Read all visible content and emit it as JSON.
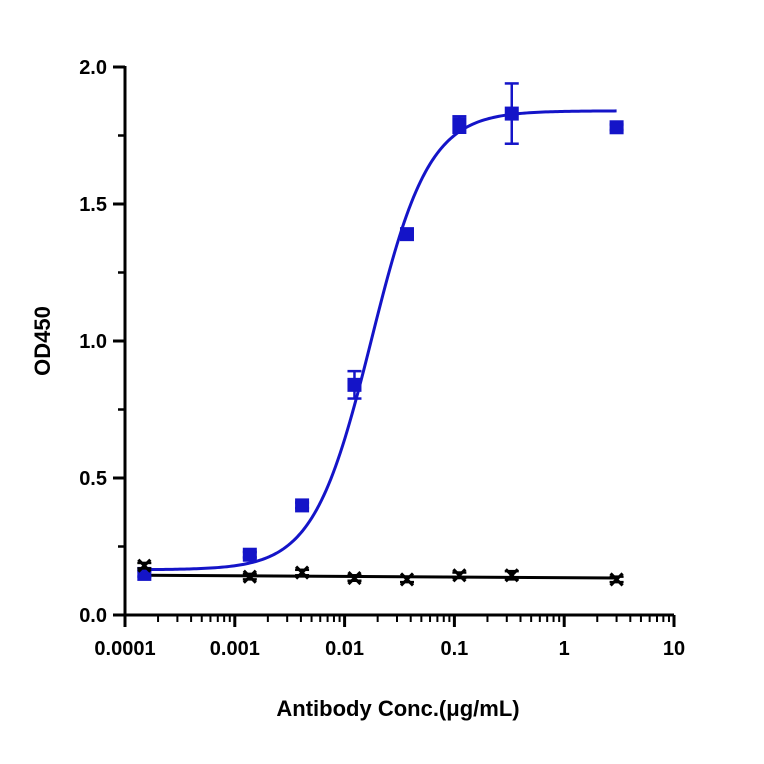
{
  "chart_data": {
    "type": "scatter",
    "title": "",
    "xlabel": "Antibody Conc.(μg/mL)",
    "ylabel": "OD450",
    "xscale": "log",
    "xlim": [
      0.0001,
      10
    ],
    "ylim": [
      0.0,
      2.0
    ],
    "x_ticks": [
      {
        "value": 0.0001,
        "label": "0.0001"
      },
      {
        "value": 0.001,
        "label": "0.001"
      },
      {
        "value": 0.01,
        "label": "0.01"
      },
      {
        "value": 0.1,
        "label": "0.1"
      },
      {
        "value": 1,
        "label": "1"
      },
      {
        "value": 10,
        "label": "10"
      }
    ],
    "y_ticks": [
      {
        "value": 0.0,
        "label": "0.0"
      },
      {
        "value": 0.5,
        "label": "0.5"
      },
      {
        "value": 1.0,
        "label": "1.0"
      },
      {
        "value": 1.5,
        "label": "1.5"
      },
      {
        "value": 2.0,
        "label": "2.0"
      }
    ],
    "grid": false,
    "legend": "none",
    "series": [
      {
        "marker": "square",
        "color": "#1414c8",
        "points": [
          {
            "x": 0.00015,
            "y": 0.15,
            "err": 0.01
          },
          {
            "x": 0.00137,
            "y": 0.22,
            "err": 0.01
          },
          {
            "x": 0.0041,
            "y": 0.4,
            "err": 0.01
          },
          {
            "x": 0.0123,
            "y": 0.84,
            "err": 0.05
          },
          {
            "x": 0.037,
            "y": 1.39,
            "err": 0.01
          },
          {
            "x": 0.111,
            "y": 1.79,
            "err": 0.03
          },
          {
            "x": 0.333,
            "y": 1.83,
            "err": 0.11
          },
          {
            "x": 3.0,
            "y": 1.78,
            "err": 0.01
          }
        ],
        "fit": {
          "bottom": 0.165,
          "top": 1.84,
          "ec50": 0.0175,
          "hill": 1.65
        }
      },
      {
        "marker": "x",
        "color": "#000000",
        "points": [
          {
            "x": 0.00015,
            "y": 0.18,
            "err": 0.01
          },
          {
            "x": 0.00137,
            "y": 0.14,
            "err": 0.01
          },
          {
            "x": 0.0041,
            "y": 0.155,
            "err": 0.01
          },
          {
            "x": 0.0123,
            "y": 0.135,
            "err": 0.01
          },
          {
            "x": 0.037,
            "y": 0.13,
            "err": 0.01
          },
          {
            "x": 0.111,
            "y": 0.145,
            "err": 0.01
          },
          {
            "x": 0.333,
            "y": 0.145,
            "err": 0.015
          },
          {
            "x": 3.0,
            "y": 0.13,
            "err": 0.01
          }
        ],
        "fit": {
          "type": "linear",
          "from": [
            0.00015,
            0.145
          ],
          "to": [
            3.0,
            0.135
          ]
        }
      }
    ]
  }
}
